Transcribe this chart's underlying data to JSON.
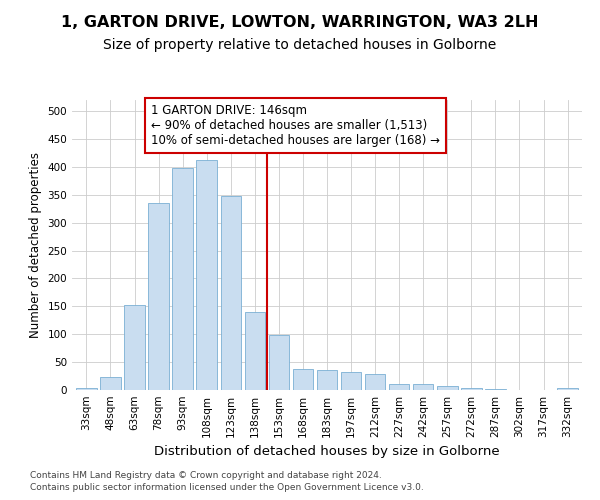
{
  "title": "1, GARTON DRIVE, LOWTON, WARRINGTON, WA3 2LH",
  "subtitle": "Size of property relative to detached houses in Golborne",
  "xlabel": "Distribution of detached houses by size in Golborne",
  "ylabel": "Number of detached properties",
  "categories": [
    "33sqm",
    "48sqm",
    "63sqm",
    "78sqm",
    "93sqm",
    "108sqm",
    "123sqm",
    "138sqm",
    "153sqm",
    "168sqm",
    "183sqm",
    "197sqm",
    "212sqm",
    "227sqm",
    "242sqm",
    "257sqm",
    "272sqm",
    "287sqm",
    "302sqm",
    "317sqm",
    "332sqm"
  ],
  "values": [
    3,
    23,
    152,
    335,
    398,
    412,
    348,
    140,
    98,
    37,
    36,
    33,
    28,
    11,
    11,
    8,
    4,
    2,
    0,
    0,
    3
  ],
  "bar_color": "#c9ddf0",
  "bar_edge_color": "#7aafd4",
  "vline_color": "#cc0000",
  "annotation_text": "1 GARTON DRIVE: 146sqm\n← 90% of detached houses are smaller (1,513)\n10% of semi-detached houses are larger (168) →",
  "annotation_box_color": "#ffffff",
  "annotation_box_edge_color": "#cc0000",
  "ylim": [
    0,
    520
  ],
  "yticks": [
    0,
    50,
    100,
    150,
    200,
    250,
    300,
    350,
    400,
    450,
    500
  ],
  "footer_line1": "Contains HM Land Registry data © Crown copyright and database right 2024.",
  "footer_line2": "Contains public sector information licensed under the Open Government Licence v3.0.",
  "background_color": "#ffffff",
  "grid_color": "#cccccc",
  "title_fontsize": 11.5,
  "subtitle_fontsize": 10,
  "xlabel_fontsize": 9.5,
  "ylabel_fontsize": 8.5,
  "tick_fontsize": 7.5,
  "annotation_fontsize": 8.5,
  "footer_fontsize": 6.5
}
